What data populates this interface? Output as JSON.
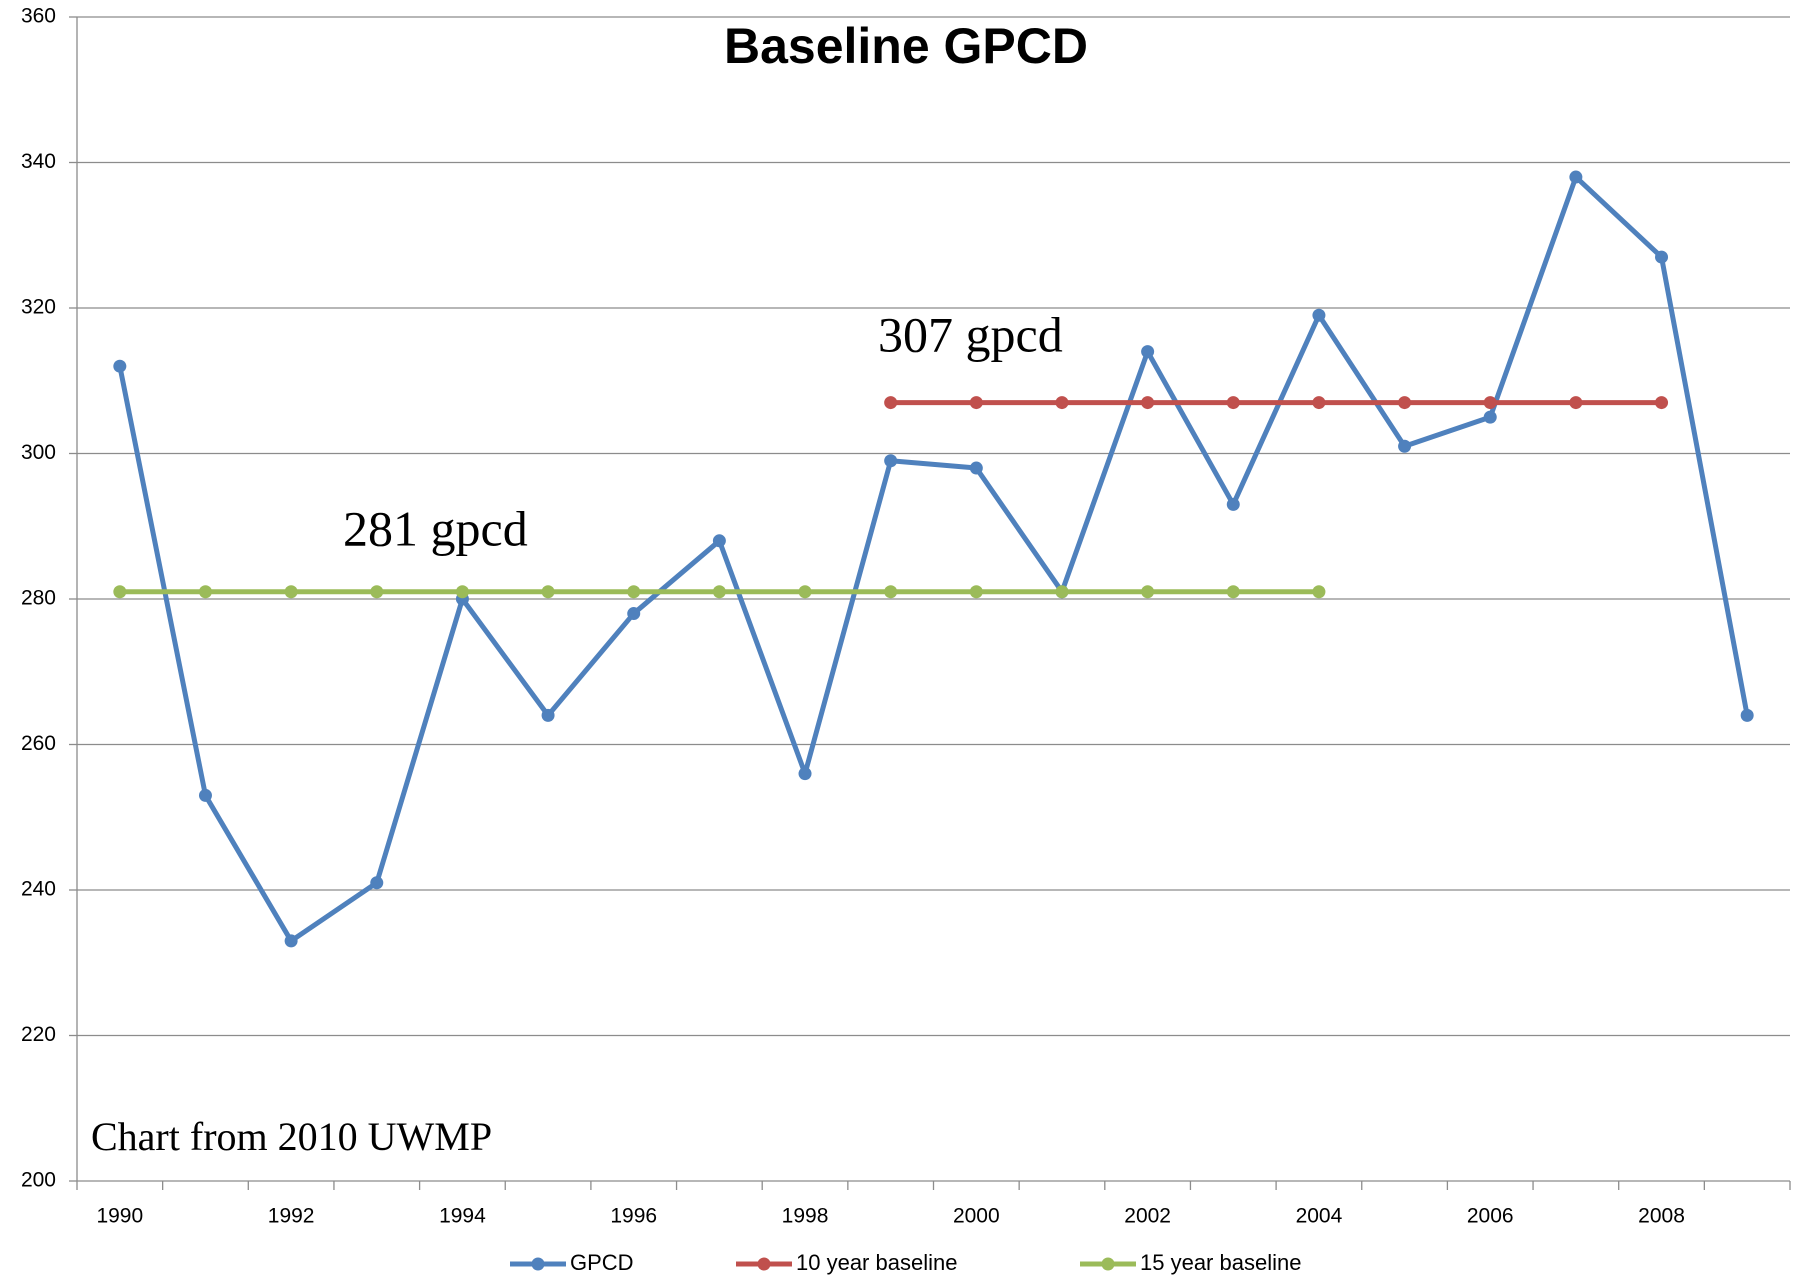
{
  "chart_data": {
    "type": "line",
    "title": "Baseline GPCD",
    "categories": [
      1990,
      null,
      1992,
      null,
      1994,
      null,
      1996,
      null,
      1998,
      null,
      2000,
      null,
      2002,
      null,
      2004,
      null,
      2006,
      null,
      2008,
      null
    ],
    "series": [
      {
        "name": "GPCD",
        "color": "#4f81bd",
        "values": [
          312,
          253,
          233,
          241,
          280,
          264,
          278,
          288,
          256,
          299,
          298,
          281,
          314,
          293,
          319,
          301,
          305,
          338,
          327,
          264
        ]
      },
      {
        "name": "10 year baseline",
        "color": "#c0504d",
        "values": [
          null,
          null,
          null,
          null,
          null,
          null,
          null,
          null,
          null,
          307,
          307,
          307,
          307,
          307,
          307,
          307,
          307,
          307,
          307,
          null
        ]
      },
      {
        "name": "15 year baseline",
        "color": "#9bbb59",
        "values": [
          281,
          281,
          281,
          281,
          281,
          281,
          281,
          281,
          281,
          281,
          281,
          281,
          281,
          281,
          281,
          null,
          null,
          null,
          null,
          null
        ]
      }
    ],
    "annotations": [
      "307 gpcd",
      "281 gpcd",
      "Chart from 2010 UWMP"
    ],
    "ylim": [
      200,
      360
    ],
    "yticks": [
      200,
      220,
      240,
      260,
      280,
      300,
      320,
      340,
      360
    ],
    "grid": true,
    "legend": "bottom"
  }
}
